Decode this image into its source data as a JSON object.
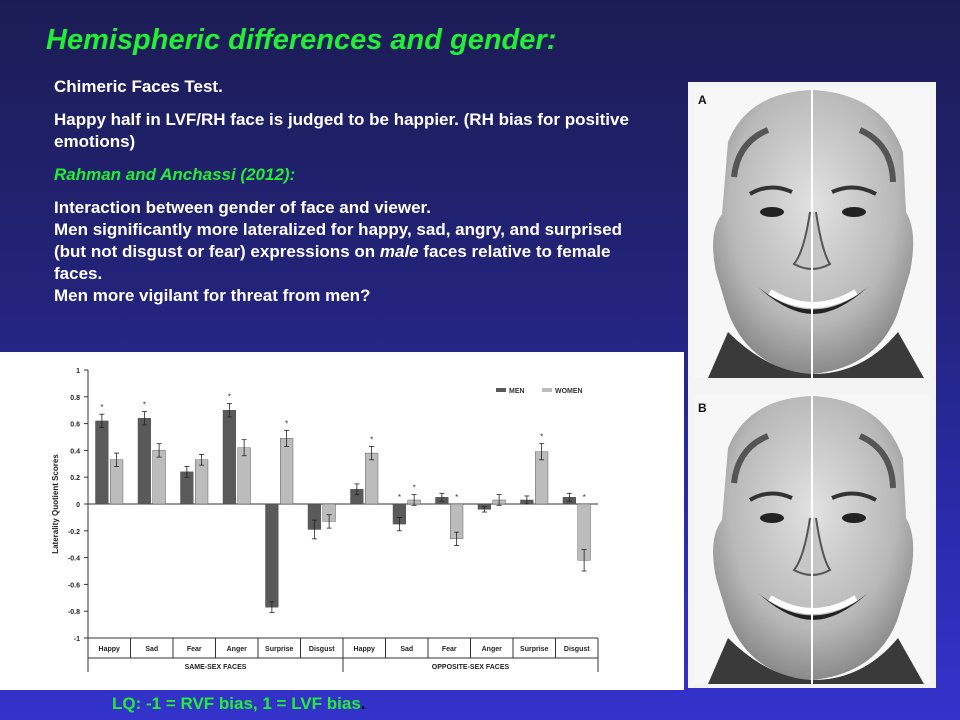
{
  "slide": {
    "title": "Hemispheric differences and gender:",
    "line1": "Chimeric Faces Test.",
    "line2": "Happy half in LVF/RH face is judged to be happier. (RH bias for positive emotions)",
    "citation": "Rahman and Anchassi (2012):",
    "para_l1": "Interaction between gender of face and viewer.",
    "para_l2": "Men significantly more lateralized for happy, sad, angry, and surprised (but not disgust or fear) expressions on",
    "para_l3_em": "male",
    "para_l3_rest": " faces relative to female faces.",
    "para_l4": "Men more vigilant for threat from men?",
    "footer": "LQ: -1 = RVF bias, 1 = LVF bias",
    "footer_period": "."
  },
  "faces": {
    "label_a": "A",
    "label_b": "B"
  },
  "chart_data": {
    "type": "bar",
    "ylabel": "Laterality Quotient Scores",
    "ylim": [
      -1,
      1
    ],
    "yticks": [
      1,
      0.8,
      0.6,
      0.4,
      0.2,
      0,
      -0.2,
      -0.4,
      -0.6,
      -0.8,
      -1
    ],
    "categories": [
      "Happy",
      "Sad",
      "Fear",
      "Anger",
      "Surprise",
      "Disgust",
      "Happy",
      "Sad",
      "Fear",
      "Anger",
      "Surprise",
      "Disgust"
    ],
    "groups": [
      {
        "label": "SAME-SEX FACES",
        "count": 6
      },
      {
        "label": "OPPOSITE-SEX FACES",
        "count": 6
      }
    ],
    "legend_position": "top-right",
    "series": [
      {
        "name": "MEN",
        "color": "#5a5a5a",
        "values": [
          0.62,
          0.64,
          0.24,
          0.7,
          -0.77,
          -0.19,
          0.11,
          -0.15,
          0.05,
          -0.04,
          0.03,
          0.05
        ],
        "errors": [
          0.05,
          0.05,
          0.04,
          0.05,
          0.04,
          0.07,
          0.04,
          0.05,
          0.03,
          0.02,
          0.03,
          0.03
        ],
        "star": [
          true,
          true,
          false,
          true,
          false,
          false,
          false,
          true,
          false,
          false,
          false,
          false
        ]
      },
      {
        "name": "WOMEN",
        "color": "#bcbcbc",
        "values": [
          0.33,
          0.4,
          0.33,
          0.42,
          0.49,
          -0.13,
          0.38,
          0.03,
          -0.26,
          0.03,
          0.39,
          -0.42
        ],
        "errors": [
          0.05,
          0.05,
          0.04,
          0.06,
          0.06,
          0.05,
          0.05,
          0.04,
          0.05,
          0.04,
          0.06,
          0.08
        ],
        "star": [
          false,
          false,
          false,
          false,
          true,
          false,
          true,
          true,
          true,
          false,
          true,
          true
        ]
      }
    ]
  }
}
